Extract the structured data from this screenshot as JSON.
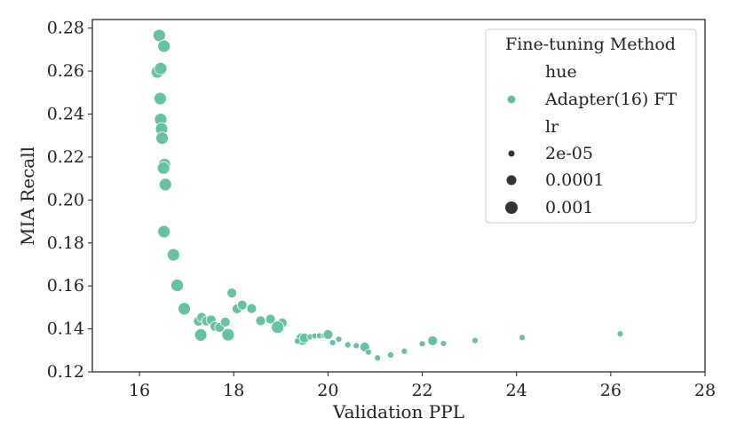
{
  "chart_data": {
    "type": "scatter",
    "xlabel": "Validation PPL",
    "ylabel": "MIA Recall",
    "xlim": [
      15,
      28
    ],
    "ylim": [
      0.12,
      0.284
    ],
    "xticks": [
      16,
      18,
      20,
      22,
      24,
      26,
      28
    ],
    "xtick_labels": [
      "16",
      "18",
      "20",
      "22",
      "24",
      "26",
      "28"
    ],
    "yticks": [
      0.12,
      0.14,
      0.16,
      0.18,
      0.2,
      0.22,
      0.24,
      0.26,
      0.28
    ],
    "ytick_labels": [
      "0.12",
      "0.14",
      "0.16",
      "0.18",
      "0.20",
      "0.22",
      "0.24",
      "0.26",
      "0.28"
    ],
    "grid": false,
    "legend": {
      "title": "Fine-tuning Method",
      "placement": "top-right",
      "hue_header": "hue",
      "hue_entries": [
        "Adapter(16) FT"
      ],
      "size_header": "lr",
      "size_entries": [
        "2e-05",
        "0.0001",
        "0.001"
      ]
    },
    "colors": {
      "series": "#66c2a5",
      "size_marker": "#333333"
    },
    "series": [
      {
        "name": "Adapter(16) FT",
        "points": [
          {
            "x": 16.42,
            "y": 0.2766,
            "lr": "0.001"
          },
          {
            "x": 16.52,
            "y": 0.2716,
            "lr": "0.001"
          },
          {
            "x": 16.38,
            "y": 0.2596,
            "lr": "0.001"
          },
          {
            "x": 16.45,
            "y": 0.2612,
            "lr": "0.001"
          },
          {
            "x": 16.44,
            "y": 0.2472,
            "lr": "0.001"
          },
          {
            "x": 16.45,
            "y": 0.2375,
            "lr": "0.001"
          },
          {
            "x": 16.47,
            "y": 0.2331,
            "lr": "0.001"
          },
          {
            "x": 16.48,
            "y": 0.2288,
            "lr": "0.001"
          },
          {
            "x": 16.53,
            "y": 0.2165,
            "lr": "0.001"
          },
          {
            "x": 16.51,
            "y": 0.2149,
            "lr": "0.001"
          },
          {
            "x": 16.55,
            "y": 0.2072,
            "lr": "0.001"
          },
          {
            "x": 16.52,
            "y": 0.1853,
            "lr": "0.001"
          },
          {
            "x": 16.72,
            "y": 0.1745,
            "lr": "0.001"
          },
          {
            "x": 16.8,
            "y": 0.1603,
            "lr": "0.001"
          },
          {
            "x": 16.95,
            "y": 0.1494,
            "lr": "0.001"
          },
          {
            "x": 17.25,
            "y": 0.1436,
            "lr": "0.0001"
          },
          {
            "x": 17.32,
            "y": 0.1454,
            "lr": "0.0001"
          },
          {
            "x": 17.42,
            "y": 0.1437,
            "lr": "0.0001"
          },
          {
            "x": 17.52,
            "y": 0.1442,
            "lr": "0.0001"
          },
          {
            "x": 17.6,
            "y": 0.1412,
            "lr": "0.0001"
          },
          {
            "x": 17.7,
            "y": 0.1407,
            "lr": "0.0001"
          },
          {
            "x": 17.82,
            "y": 0.1432,
            "lr": "0.0001"
          },
          {
            "x": 17.96,
            "y": 0.1567,
            "lr": "0.0001"
          },
          {
            "x": 18.07,
            "y": 0.1493,
            "lr": "0.0001"
          },
          {
            "x": 18.18,
            "y": 0.1511,
            "lr": "0.0001"
          },
          {
            "x": 18.38,
            "y": 0.1495,
            "lr": "0.0001"
          },
          {
            "x": 18.57,
            "y": 0.1438,
            "lr": "0.0001"
          },
          {
            "x": 18.78,
            "y": 0.1446,
            "lr": "0.0001"
          },
          {
            "x": 19.03,
            "y": 0.1428,
            "lr": "0.0001"
          },
          {
            "x": 17.3,
            "y": 0.1372,
            "lr": "0.001"
          },
          {
            "x": 17.88,
            "y": 0.1373,
            "lr": "0.001"
          },
          {
            "x": 18.93,
            "y": 0.1408,
            "lr": "0.001"
          },
          {
            "x": 19.45,
            "y": 0.1353,
            "lr": "0.001"
          },
          {
            "x": 19.35,
            "y": 0.1343,
            "lr": "2e-05"
          },
          {
            "x": 19.5,
            "y": 0.1358,
            "lr": "0.0001"
          },
          {
            "x": 19.62,
            "y": 0.1363,
            "lr": "2e-05"
          },
          {
            "x": 19.72,
            "y": 0.1367,
            "lr": "2e-05"
          },
          {
            "x": 19.82,
            "y": 0.1368,
            "lr": "2e-05"
          },
          {
            "x": 19.92,
            "y": 0.1369,
            "lr": "2e-05"
          },
          {
            "x": 20.0,
            "y": 0.1374,
            "lr": "0.0001"
          },
          {
            "x": 20.1,
            "y": 0.1336,
            "lr": "2e-05"
          },
          {
            "x": 20.23,
            "y": 0.1352,
            "lr": "2e-05"
          },
          {
            "x": 20.42,
            "y": 0.1326,
            "lr": "2e-05"
          },
          {
            "x": 20.6,
            "y": 0.1322,
            "lr": "2e-05"
          },
          {
            "x": 20.73,
            "y": 0.1317,
            "lr": "2e-05"
          },
          {
            "x": 20.78,
            "y": 0.1316,
            "lr": "0.0001"
          },
          {
            "x": 20.86,
            "y": 0.1292,
            "lr": "2e-05"
          },
          {
            "x": 21.05,
            "y": 0.1265,
            "lr": "2e-05"
          },
          {
            "x": 21.33,
            "y": 0.1279,
            "lr": "2e-05"
          },
          {
            "x": 21.62,
            "y": 0.1296,
            "lr": "2e-05"
          },
          {
            "x": 22.0,
            "y": 0.1331,
            "lr": "2e-05"
          },
          {
            "x": 22.22,
            "y": 0.1345,
            "lr": "0.0001"
          },
          {
            "x": 22.45,
            "y": 0.1332,
            "lr": "2e-05"
          },
          {
            "x": 23.12,
            "y": 0.1346,
            "lr": "2e-05"
          },
          {
            "x": 24.12,
            "y": 0.136,
            "lr": "2e-05"
          },
          {
            "x": 26.2,
            "y": 0.1377,
            "lr": "2e-05"
          }
        ]
      }
    ]
  }
}
